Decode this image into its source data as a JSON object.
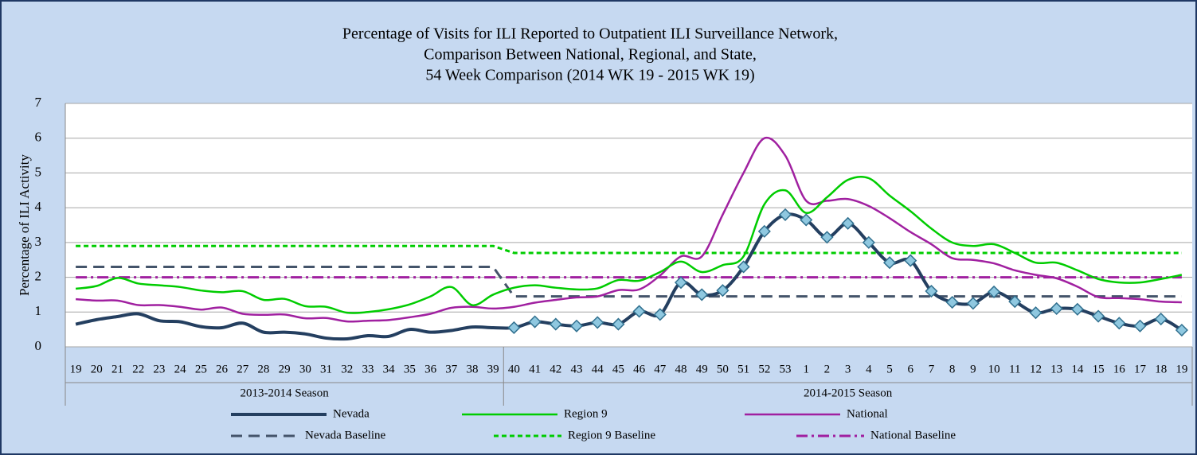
{
  "chart_data": {
    "type": "line",
    "title": [
      "Percentage of Visits for ILI Reported to Outpatient ILI Surveillance Network,",
      "Comparison Between National, Regional, and State,",
      "54 Week Comparison (2014 WK 19 - 2015 WK 19)"
    ],
    "y_label": "Percentage of ILI Activity",
    "categories": [
      19,
      20,
      21,
      22,
      23,
      24,
      25,
      26,
      27,
      28,
      29,
      30,
      31,
      32,
      33,
      34,
      35,
      36,
      37,
      38,
      39,
      40,
      41,
      42,
      43,
      44,
      45,
      46,
      47,
      48,
      49,
      50,
      51,
      52,
      53,
      1,
      2,
      3,
      4,
      5,
      6,
      7,
      8,
      9,
      10,
      11,
      12,
      13,
      14,
      15,
      16,
      17,
      18,
      19
    ],
    "category_groups": [
      {
        "label": "2013-2014 Season",
        "span": 21
      },
      {
        "label": "2014-2015 Season",
        "span": 33
      }
    ],
    "ylim": [
      0,
      7
    ],
    "yticks": [
      0,
      1,
      2,
      3,
      4,
      5,
      6,
      7
    ],
    "grid": true,
    "series": [
      {
        "name": "Nevada",
        "color": "#243f60",
        "width": 4,
        "dash": "none",
        "smooth": true,
        "marker": "diamond",
        "marker_group": 1,
        "values": [
          0.65,
          0.78,
          0.87,
          0.95,
          0.75,
          0.72,
          0.58,
          0.55,
          0.68,
          0.42,
          0.42,
          0.37,
          0.25,
          0.23,
          0.32,
          0.3,
          0.5,
          0.42,
          0.47,
          0.57,
          0.55,
          0.55,
          0.72,
          0.65,
          0.6,
          0.7,
          0.65,
          1.02,
          0.93,
          1.85,
          1.5,
          1.62,
          2.3,
          3.32,
          3.8,
          3.65,
          3.15,
          3.55,
          3.0,
          2.42,
          2.48,
          1.6,
          1.28,
          1.25,
          1.58,
          1.3,
          0.98,
          1.1,
          1.08,
          0.88,
          0.68,
          0.6,
          0.8,
          0.48
        ]
      },
      {
        "name": "Region 9",
        "color": "#00cc00",
        "width": 2.5,
        "dash": "none",
        "smooth": true,
        "values": [
          1.67,
          1.75,
          1.98,
          1.82,
          1.77,
          1.72,
          1.62,
          1.57,
          1.6,
          1.35,
          1.38,
          1.17,
          1.15,
          0.98,
          1.0,
          1.08,
          1.22,
          1.45,
          1.72,
          1.2,
          1.5,
          1.7,
          1.77,
          1.7,
          1.65,
          1.68,
          1.92,
          1.9,
          2.15,
          2.45,
          2.15,
          2.35,
          2.6,
          4.1,
          4.5,
          3.85,
          4.3,
          4.8,
          4.85,
          4.35,
          3.9,
          3.4,
          3.0,
          2.9,
          2.95,
          2.7,
          2.42,
          2.42,
          2.2,
          1.95,
          1.85,
          1.85,
          1.95,
          2.07
        ]
      },
      {
        "name": "National",
        "color": "#a020a0",
        "width": 2.5,
        "dash": "none",
        "smooth": true,
        "values": [
          1.37,
          1.33,
          1.33,
          1.2,
          1.2,
          1.15,
          1.07,
          1.13,
          0.95,
          0.92,
          0.93,
          0.82,
          0.83,
          0.73,
          0.75,
          0.77,
          0.85,
          0.95,
          1.12,
          1.15,
          1.1,
          1.15,
          1.27,
          1.35,
          1.42,
          1.45,
          1.63,
          1.65,
          2.05,
          2.6,
          2.6,
          3.8,
          5.0,
          6.0,
          5.5,
          4.2,
          4.2,
          4.25,
          4.05,
          3.7,
          3.3,
          2.95,
          2.55,
          2.5,
          2.4,
          2.2,
          2.07,
          1.97,
          1.73,
          1.43,
          1.4,
          1.37,
          1.3,
          1.28
        ]
      },
      {
        "name": "Nevada Baseline",
        "color": "#44546a",
        "width": 3,
        "dash": "14,8",
        "smooth": false,
        "values": [
          2.3,
          2.3,
          2.3,
          2.3,
          2.3,
          2.3,
          2.3,
          2.3,
          2.3,
          2.3,
          2.3,
          2.3,
          2.3,
          2.3,
          2.3,
          2.3,
          2.3,
          2.3,
          2.3,
          2.3,
          2.3,
          1.45,
          1.45,
          1.45,
          1.45,
          1.45,
          1.45,
          1.45,
          1.45,
          1.45,
          1.45,
          1.45,
          1.45,
          1.45,
          1.45,
          1.45,
          1.45,
          1.45,
          1.45,
          1.45,
          1.45,
          1.45,
          1.45,
          1.45,
          1.45,
          1.45,
          1.45,
          1.45,
          1.45,
          1.45,
          1.45,
          1.45,
          1.45,
          1.45
        ]
      },
      {
        "name": "Region 9 Baseline",
        "color": "#00cc00",
        "width": 3,
        "dash": "6,4",
        "smooth": false,
        "values": [
          2.9,
          2.9,
          2.9,
          2.9,
          2.9,
          2.9,
          2.9,
          2.9,
          2.9,
          2.9,
          2.9,
          2.9,
          2.9,
          2.9,
          2.9,
          2.9,
          2.9,
          2.9,
          2.9,
          2.9,
          2.9,
          2.7,
          2.7,
          2.7,
          2.7,
          2.7,
          2.7,
          2.7,
          2.7,
          2.7,
          2.7,
          2.7,
          2.7,
          2.7,
          2.7,
          2.7,
          2.7,
          2.7,
          2.7,
          2.7,
          2.7,
          2.7,
          2.7,
          2.7,
          2.7,
          2.7,
          2.7,
          2.7,
          2.7,
          2.7,
          2.7,
          2.7,
          2.7,
          2.7
        ]
      },
      {
        "name": "National Baseline",
        "color": "#a020a0",
        "width": 3,
        "dash": "14,5,3,5",
        "smooth": false,
        "values": [
          2,
          2,
          2,
          2,
          2,
          2,
          2,
          2,
          2,
          2,
          2,
          2,
          2,
          2,
          2,
          2,
          2,
          2,
          2,
          2,
          2,
          2,
          2,
          2,
          2,
          2,
          2,
          2,
          2,
          2,
          2,
          2,
          2,
          2,
          2,
          2,
          2,
          2,
          2,
          2,
          2,
          2,
          2,
          2,
          2,
          2,
          2,
          2,
          2,
          2,
          2,
          2,
          2,
          2
        ]
      }
    ]
  }
}
